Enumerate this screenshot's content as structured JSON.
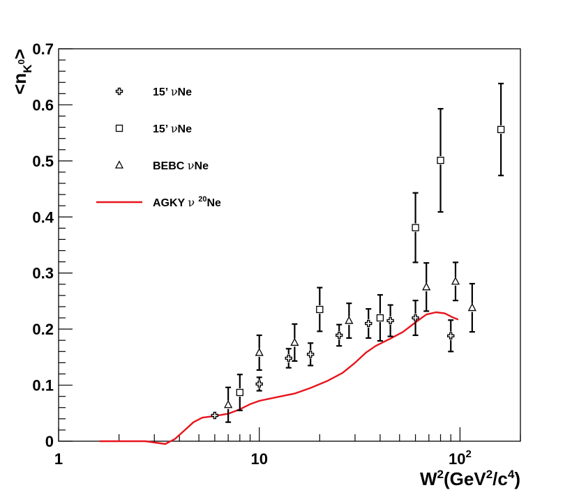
{
  "chart_data": {
    "type": "scatter",
    "title": "",
    "xlabel": {
      "base": "W",
      "sup1": "2",
      "paren_open": "(GeV",
      "sup2": "2",
      "mid": "/c",
      "sup3": "4",
      "paren_close": ")"
    },
    "ylabel": {
      "open": "<n",
      "sub": "K",
      "subsup": "0",
      "close": ">"
    },
    "xscale": "log",
    "xlim": [
      1,
      200
    ],
    "ylim": [
      0,
      0.7
    ],
    "x_ticks": [
      {
        "value": 1,
        "label": "1"
      },
      {
        "value": 10,
        "label": "10"
      },
      {
        "value": 100,
        "label": "10",
        "exp": "2"
      }
    ],
    "y_ticks": [
      {
        "value": 0,
        "label": "0"
      },
      {
        "value": 0.1,
        "label": "0.1"
      },
      {
        "value": 0.2,
        "label": "0.2"
      },
      {
        "value": 0.3,
        "label": "0.3"
      },
      {
        "value": 0.4,
        "label": "0.4"
      },
      {
        "value": 0.5,
        "label": "0.5"
      },
      {
        "value": 0.6,
        "label": "0.6"
      },
      {
        "value": 0.7,
        "label": "0.7"
      }
    ],
    "legend_position": "top-left",
    "series": [
      {
        "name": "15’ νNe",
        "legend_prefix": "15’ ",
        "legend_nu": "ν",
        "legend_suffix": "Ne",
        "marker": "cross",
        "points": [
          {
            "x": 6.0,
            "y": 0.046,
            "err": 0.0
          },
          {
            "x": 10.0,
            "y": 0.102,
            "err": 0.012
          },
          {
            "x": 14.0,
            "y": 0.148,
            "err": 0.017
          },
          {
            "x": 18.0,
            "y": 0.155,
            "err": 0.02
          },
          {
            "x": 25.0,
            "y": 0.189,
            "err": 0.019
          },
          {
            "x": 35.0,
            "y": 0.21,
            "err": 0.026
          },
          {
            "x": 45.0,
            "y": 0.215,
            "err": 0.028
          },
          {
            "x": 60.0,
            "y": 0.22,
            "err": 0.031
          },
          {
            "x": 90.0,
            "y": 0.188,
            "err": 0.028
          }
        ]
      },
      {
        "name": "15’ νNe",
        "legend_prefix": "15’ ",
        "legend_nu": "ν",
        "legend_suffix": "Ne",
        "marker": "square",
        "points": [
          {
            "x": 8.0,
            "y": 0.087,
            "err": 0.032
          },
          {
            "x": 20.0,
            "y": 0.235,
            "err": 0.039
          },
          {
            "x": 40.0,
            "y": 0.22,
            "err": 0.041
          },
          {
            "x": 60.0,
            "y": 0.381,
            "err": 0.062
          },
          {
            "x": 80.0,
            "y": 0.501,
            "err": 0.092
          },
          {
            "x": 160.0,
            "y": 0.556,
            "err": 0.082
          }
        ]
      },
      {
        "name": "BEBC νNe",
        "legend_prefix": "BEBC ",
        "legend_nu": "ν",
        "legend_suffix": "Ne",
        "marker": "triangle",
        "points": [
          {
            "x": 7.0,
            "y": 0.065,
            "err": 0.031
          },
          {
            "x": 10.0,
            "y": 0.158,
            "err": 0.031
          },
          {
            "x": 15.0,
            "y": 0.176,
            "err": 0.033
          },
          {
            "x": 28.0,
            "y": 0.215,
            "err": 0.031
          },
          {
            "x": 68.0,
            "y": 0.275,
            "err": 0.043
          },
          {
            "x": 95.0,
            "y": 0.285,
            "err": 0.034
          },
          {
            "x": 115.0,
            "y": 0.238,
            "err": 0.043
          }
        ]
      },
      {
        "name": "AGKY ν 20Ne",
        "legend_prefix": "AGKY ",
        "legend_nu": "ν ",
        "legend_sup": "20",
        "legend_suffix": "Ne",
        "marker": "line",
        "color": "#e8141c",
        "points": [
          {
            "x": 1.6,
            "y": 0.0
          },
          {
            "x": 2.0,
            "y": 0.0
          },
          {
            "x": 2.7,
            "y": 0.0
          },
          {
            "x": 3.4,
            "y": -0.005
          },
          {
            "x": 3.8,
            "y": 0.004
          },
          {
            "x": 4.2,
            "y": 0.018
          },
          {
            "x": 4.7,
            "y": 0.034
          },
          {
            "x": 5.2,
            "y": 0.042
          },
          {
            "x": 6.0,
            "y": 0.045
          },
          {
            "x": 7.0,
            "y": 0.049
          },
          {
            "x": 8.0,
            "y": 0.057
          },
          {
            "x": 9.0,
            "y": 0.066
          },
          {
            "x": 10.0,
            "y": 0.072
          },
          {
            "x": 12.0,
            "y": 0.078
          },
          {
            "x": 15.0,
            "y": 0.085
          },
          {
            "x": 18.0,
            "y": 0.095
          },
          {
            "x": 22.0,
            "y": 0.108
          },
          {
            "x": 26.0,
            "y": 0.122
          },
          {
            "x": 30.0,
            "y": 0.14
          },
          {
            "x": 34.0,
            "y": 0.158
          },
          {
            "x": 38.0,
            "y": 0.17
          },
          {
            "x": 45.0,
            "y": 0.183
          },
          {
            "x": 52.0,
            "y": 0.195
          },
          {
            "x": 60.0,
            "y": 0.212
          },
          {
            "x": 68.0,
            "y": 0.226
          },
          {
            "x": 76.0,
            "y": 0.23
          },
          {
            "x": 84.0,
            "y": 0.228
          },
          {
            "x": 92.0,
            "y": 0.221
          },
          {
            "x": 98.0,
            "y": 0.217
          }
        ]
      }
    ]
  }
}
